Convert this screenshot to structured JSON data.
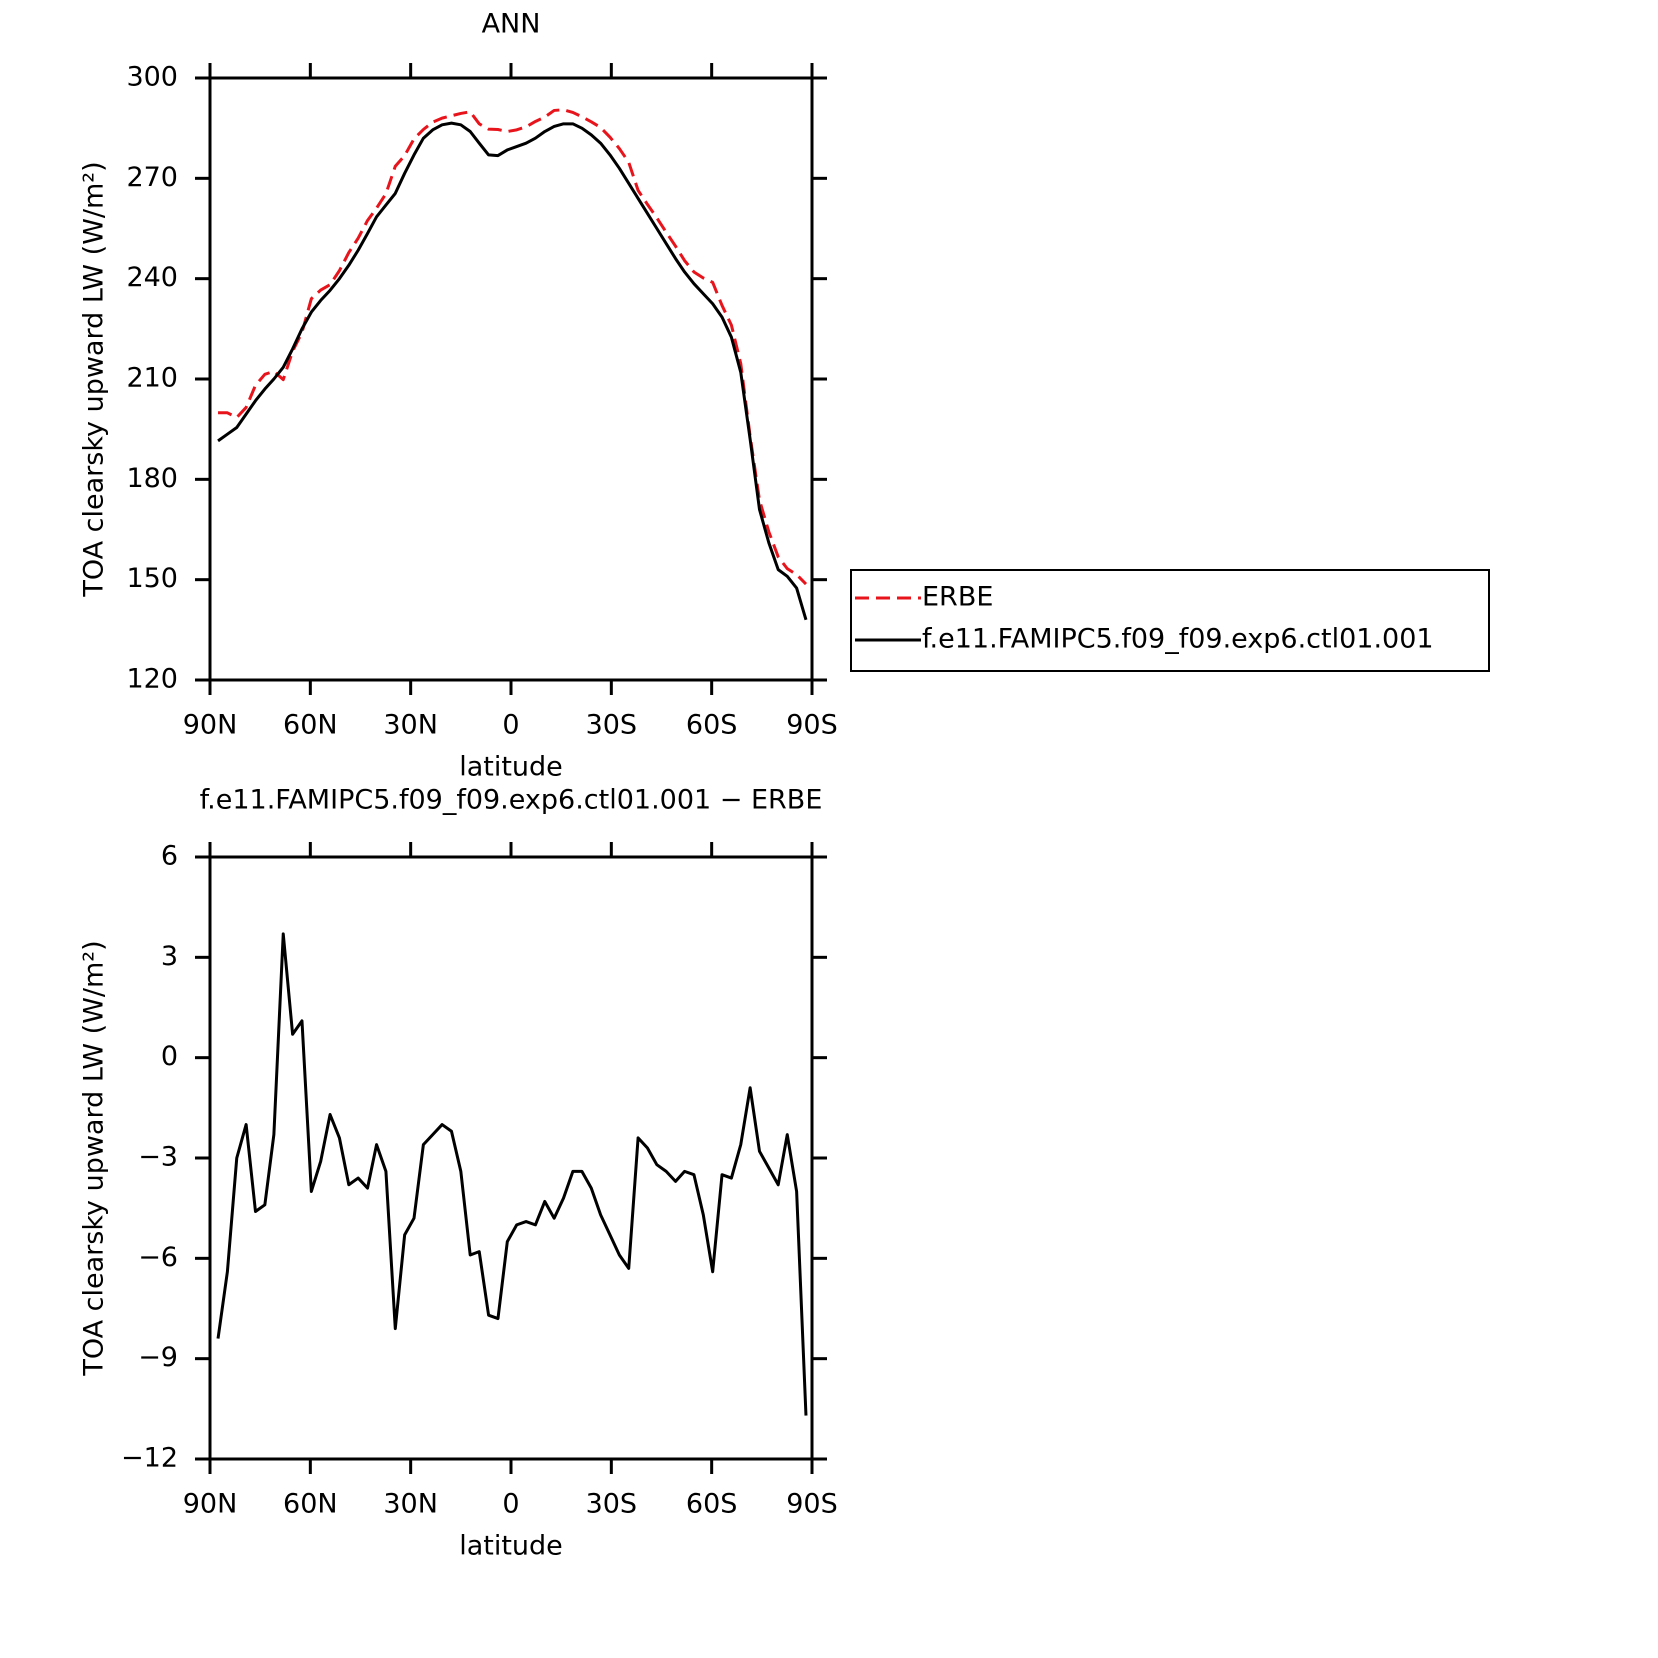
{
  "chart_data": [
    {
      "type": "line",
      "title": "ANN",
      "xlabel": "latitude",
      "ylabel": "TOA clearsky upward LW (W/m²)",
      "x": [
        87.6,
        84.8,
        82.0,
        79.2,
        76.4,
        73.6,
        70.9,
        68.1,
        65.3,
        62.5,
        59.7,
        56.9,
        54.1,
        51.3,
        48.5,
        45.7,
        42.9,
        40.2,
        37.4,
        34.6,
        31.8,
        29.0,
        26.2,
        23.4,
        20.6,
        17.8,
        15.0,
        12.2,
        9.5,
        6.7,
        3.9,
        1.1,
        -1.7,
        -4.5,
        -7.3,
        -10.1,
        -12.9,
        -15.7,
        -18.5,
        -21.2,
        -24.0,
        -26.8,
        -29.6,
        -32.4,
        -35.2,
        -38.0,
        -40.8,
        -43.6,
        -46.4,
        -49.2,
        -51.9,
        -54.7,
        -57.5,
        -60.3,
        -63.1,
        -65.9,
        -68.7,
        -71.5,
        -74.3,
        -77.1,
        -79.9,
        -82.6,
        -85.4,
        -88.2
      ],
      "series": [
        {
          "name": "ERBE",
          "color": "#e8141c",
          "dashed": true,
          "values": [
            199.9,
            199.9,
            198.5,
            201.5,
            208.1,
            211.4,
            212.3,
            209.8,
            218.3,
            223.9,
            234,
            236.6,
            238.2,
            242.4,
            247.8,
            252.1,
            257.4,
            261.1,
            265.4,
            273.6,
            276.8,
            281.8,
            284.6,
            286.8,
            288,
            288.7,
            289.4,
            289.9,
            286.3,
            284.7,
            284.6,
            284,
            284.5,
            285.4,
            287,
            288.3,
            290.3,
            290.5,
            289.7,
            288.4,
            286.9,
            285.2,
            282.3,
            278.9,
            274.8,
            266.4,
            262.2,
            258.2,
            253.9,
            249.7,
            245.4,
            242,
            240.2,
            238.9,
            232,
            226.1,
            214.6,
            192.9,
            173.8,
            164.3,
            156.8,
            153.3,
            151.5,
            148.7
          ]
        },
        {
          "name": "f.e11.FAMIPC5.f09_f09.exp6.ctl01.001",
          "color": "#000000",
          "dashed": false,
          "values": [
            191.5,
            193.5,
            195.5,
            199.5,
            203.5,
            207,
            210,
            213.5,
            219,
            225,
            230,
            233.5,
            236.5,
            240,
            244,
            248.5,
            253.5,
            258.5,
            262,
            265.5,
            271.5,
            277,
            282,
            284.5,
            286,
            286.5,
            286,
            284,
            280.5,
            277,
            276.8,
            278.5,
            279.5,
            280.5,
            282,
            284,
            285.5,
            286.3,
            286.3,
            285,
            283,
            280.5,
            277,
            273,
            268.5,
            264,
            259.5,
            255,
            250.5,
            246,
            242,
            238.5,
            235.5,
            232.5,
            228.5,
            222.5,
            212,
            192,
            171,
            161,
            153,
            151,
            147.5,
            138
          ]
        }
      ],
      "xlim": [
        90,
        -90
      ],
      "xticks": [
        {
          "value": 90,
          "label": "90N"
        },
        {
          "value": 60,
          "label": "60N"
        },
        {
          "value": 30,
          "label": "30N"
        },
        0,
        {
          "value": -30,
          "label": "30S"
        },
        {
          "value": -60,
          "label": "60S"
        },
        {
          "value": -90,
          "label": "90S"
        }
      ],
      "ylim": [
        120,
        300
      ],
      "yticks": [
        120,
        150,
        180,
        210,
        240,
        270,
        300
      ],
      "legend": "right"
    },
    {
      "type": "line",
      "title": "f.e11.FAMIPC5.f09_f09.exp6.ctl01.001 − ERBE",
      "xlabel": "latitude",
      "ylabel": "TOA clearsky upward LW (W/m²)",
      "x": [
        87.6,
        84.8,
        82.0,
        79.2,
        76.4,
        73.6,
        70.9,
        68.1,
        65.3,
        62.5,
        59.7,
        56.9,
        54.1,
        51.3,
        48.5,
        45.7,
        42.9,
        40.2,
        37.4,
        34.6,
        31.8,
        29.0,
        26.2,
        23.4,
        20.6,
        17.8,
        15.0,
        12.2,
        9.5,
        6.7,
        3.9,
        1.1,
        -1.7,
        -4.5,
        -7.3,
        -10.1,
        -12.9,
        -15.7,
        -18.5,
        -21.2,
        -24.0,
        -26.8,
        -29.6,
        -32.4,
        -35.2,
        -38.0,
        -40.8,
        -43.6,
        -46.4,
        -49.2,
        -51.9,
        -54.7,
        -57.5,
        -60.3,
        -63.1,
        -65.9,
        -68.7,
        -71.5,
        -74.3,
        -77.1,
        -79.9,
        -82.6,
        -85.4,
        -88.2
      ],
      "series": [
        {
          "color": "#000000",
          "dashed": false,
          "values": [
            -8.4,
            -6.4,
            -3.0,
            -2.0,
            -4.6,
            -4.4,
            -2.3,
            3.7,
            0.7,
            1.1,
            -4.0,
            -3.1,
            -1.7,
            -2.4,
            -3.8,
            -3.6,
            -3.9,
            -2.6,
            -3.4,
            -8.1,
            -5.3,
            -4.8,
            -2.6,
            -2.3,
            -2.0,
            -2.2,
            -3.4,
            -5.9,
            -5.8,
            -7.7,
            -7.8,
            -5.5,
            -5.0,
            -4.9,
            -5.0,
            -4.3,
            -4.8,
            -4.2,
            -3.4,
            -3.4,
            -3.9,
            -4.7,
            -5.3,
            -5.9,
            -6.3,
            -2.4,
            -2.7,
            -3.2,
            -3.4,
            -3.7,
            -3.4,
            -3.5,
            -4.7,
            -6.4,
            -3.5,
            -3.6,
            -2.6,
            -0.9,
            -2.8,
            -3.3,
            -3.8,
            -2.3,
            -4.0,
            -10.7
          ]
        }
      ],
      "xlim": [
        90,
        -90
      ],
      "xticks": [
        {
          "value": 90,
          "label": "90N"
        },
        {
          "value": 60,
          "label": "60N"
        },
        {
          "value": 30,
          "label": "30N"
        },
        0,
        {
          "value": -30,
          "label": "30S"
        },
        {
          "value": -60,
          "label": "60S"
        },
        {
          "value": -90,
          "label": "90S"
        }
      ],
      "ylim": [
        -12,
        6
      ],
      "yticks": [
        {
          "value": -12,
          "label": "−12"
        },
        {
          "value": -9,
          "label": "−9"
        },
        {
          "value": -6,
          "label": "−6"
        },
        {
          "value": -3,
          "label": "−3"
        },
        0,
        3,
        6
      ]
    }
  ]
}
